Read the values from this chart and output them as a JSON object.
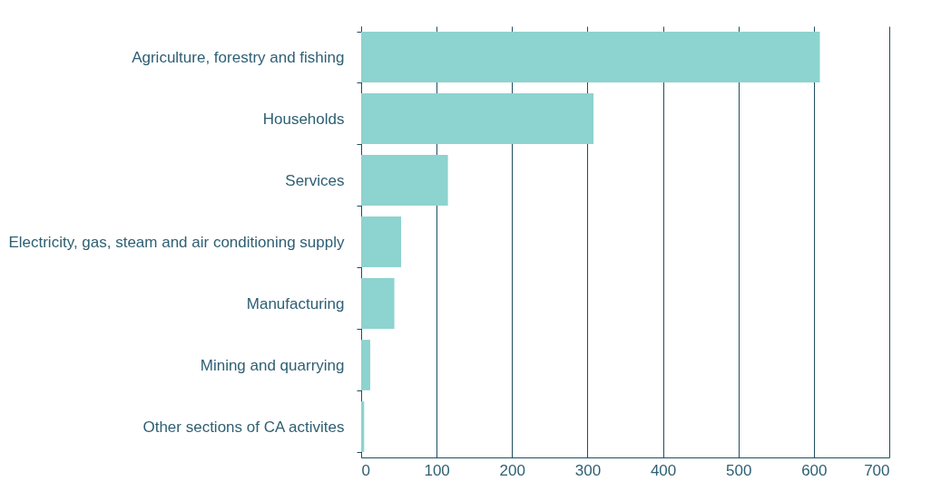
{
  "chart_data": {
    "type": "bar",
    "orientation": "horizontal",
    "categories": [
      "Agriculture, forestry and fishing",
      "Households",
      "Services",
      "Electricity, gas, steam and air conditioning supply",
      "Manufacturing",
      "Mining and quarrying",
      "Other sections of CA activites"
    ],
    "values": [
      608,
      308,
      115,
      53,
      44,
      12,
      4
    ],
    "color": "#8dd3cf",
    "xlim": [
      0,
      700
    ],
    "xticks": [
      0,
      100,
      200,
      300,
      400,
      500,
      600,
      700
    ],
    "grid": "x"
  }
}
